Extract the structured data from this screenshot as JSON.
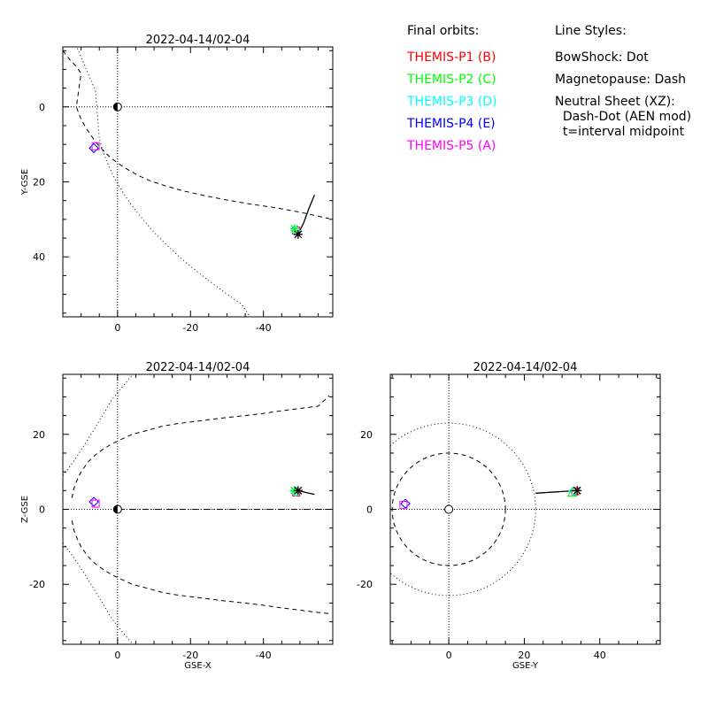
{
  "legend": {
    "orbits_title": "Final orbits:",
    "probes": [
      {
        "label": "THEMIS-P1 (B)",
        "color": "#ff0000"
      },
      {
        "label": "THEMIS-P2 (C)",
        "color": "#00ff00"
      },
      {
        "label": "THEMIS-P3 (D)",
        "color": "#00ffff"
      },
      {
        "label": "THEMIS-P4 (E)",
        "color": "#0000ff"
      },
      {
        "label": "THEMIS-P5 (A)",
        "color": "#ff00ff"
      }
    ],
    "styles_title": "Line Styles:",
    "styles": [
      "BowShock: Dot",
      "Magnetopause: Dash",
      "Neutral Sheet (XZ):",
      "  Dash-Dot (AEN mod)",
      "  t=interval midpoint"
    ]
  },
  "chart_data": [
    {
      "type": "line",
      "title": "2022-04-14/02-04",
      "xlabel": "",
      "ylabel": "Y-GSE",
      "xlim": [
        15,
        -59
      ],
      "ylim": [
        56,
        -16
      ],
      "xticks": [
        0,
        -20,
        -40
      ],
      "xtick_labels": [
        "0",
        "-20",
        "-40"
      ],
      "yticks": [
        0,
        20,
        40
      ],
      "ytick_labels": [
        "0",
        "20",
        "40"
      ],
      "series": [
        {
          "kind": "bowshock",
          "style": "dot",
          "color": "#000000",
          "x": [
            13,
            12,
            11,
            10,
            9,
            8,
            7,
            6,
            5,
            4,
            3,
            2,
            1,
            0,
            -2,
            -4,
            -6,
            -8,
            -10,
            -12,
            -14,
            -16,
            -18,
            -20,
            -22,
            -24,
            -26,
            -28,
            -30,
            -32,
            -34,
            -36
          ],
          "y": [
            -20.9,
            -18.1,
            -15.6,
            -13.3,
            -11,
            -8.7,
            -6.4,
            -4.1,
            8.6,
            11.8,
            14.4,
            16.6,
            18.7,
            20.5,
            23.6,
            26.4,
            28.9,
            31.2,
            33.4,
            35.4,
            37.3,
            39.1,
            40.9,
            42.5,
            44.1,
            45.6,
            47.1,
            48.5,
            49.9,
            51.3,
            52.6,
            55.5
          ]
        },
        {
          "kind": "magnetopause",
          "style": "dash",
          "color": "#000000",
          "x": [
            15,
            13,
            11.5,
            10,
            11.3,
            10.1,
            8.8,
            7.5,
            6.2,
            4.9,
            3.6,
            2.3,
            0.7,
            -1.1,
            -3.3,
            -5.9,
            -9.2,
            -13.3,
            -18,
            -23.5,
            -29.7,
            -36.3,
            -43.3,
            -50.5,
            -58
          ],
          "y": [
            -15,
            -12.5,
            -11,
            -9,
            0,
            3.1,
            5.4,
            7.3,
            9.1,
            10.6,
            11.9,
            13.2,
            14.4,
            15.7,
            17,
            18.4,
            19.8,
            21.1,
            22.4,
            23.6,
            24.8,
            25.9,
            26.9,
            28.2,
            29.8
          ]
        },
        {
          "kind": "trajectory",
          "style": "solid",
          "color": "#000000",
          "x": [
            -49.5,
            -51,
            -52.5,
            -54
          ],
          "y": [
            34,
            31,
            27,
            23.5
          ]
        }
      ],
      "markers": [
        {
          "probe": "P1",
          "symbol": "square",
          "color": "#ff0000",
          "x": -49,
          "y": 33
        },
        {
          "probe": "P2",
          "symbol": "asterisk",
          "color": "#00ff00",
          "x": -48.5,
          "y": 32.5
        },
        {
          "probe": "P3",
          "symbol": "diamond",
          "color": "#00ffff",
          "x": -48.8,
          "y": 33
        },
        {
          "probe": "P4",
          "symbol": "diamond",
          "color": "#0000ff",
          "x": 6.5,
          "y": 11
        },
        {
          "probe": "P5",
          "symbol": "square",
          "color": "#ff00ff",
          "x": 6,
          "y": 10.5
        },
        {
          "probe": "midpoint",
          "symbol": "asterisk",
          "color": "#000000",
          "x": -49.5,
          "y": 34
        }
      ],
      "earth": {
        "x": 0,
        "y": 0
      },
      "grid": "dotted zero lines"
    },
    {
      "type": "line",
      "title": "2022-04-14/02-04",
      "xlabel": "GSE-X",
      "ylabel": "Z-GSE",
      "xlim": [
        15,
        -59
      ],
      "ylim": [
        -36,
        36
      ],
      "xticks": [
        0,
        -20,
        -40
      ],
      "xtick_labels": [
        "0",
        "-20",
        "-40"
      ],
      "yticks": [
        -20,
        0,
        20
      ],
      "ytick_labels": [
        "-20",
        "0",
        "20"
      ],
      "series": [
        {
          "kind": "bowshock",
          "style": "dot",
          "color": "#000000",
          "x": [
            15,
            13,
            11,
            9,
            7,
            5,
            3,
            2,
            0,
            -2,
            -4,
            -6,
            -8,
            -10
          ],
          "y": [
            -9,
            -11.5,
            -14.3,
            -17.3,
            -20.4,
            -23.6,
            -26.9,
            -28.6,
            -31.1,
            -33.5,
            -35.8,
            -38,
            -40,
            -42
          ]
        },
        {
          "kind": "bowshock",
          "style": "dot",
          "color": "#000000",
          "x": [
            15,
            13,
            11,
            9,
            7,
            5,
            3,
            2,
            0,
            -2,
            -4,
            -6,
            -8,
            -10
          ],
          "y": [
            9,
            11.5,
            14.3,
            17.3,
            20.4,
            23.6,
            26.9,
            28.6,
            31.1,
            33.5,
            35.8,
            38,
            40,
            42
          ]
        },
        {
          "kind": "magnetopause",
          "style": "dash",
          "color": "#000000",
          "x": [
            12.5,
            12,
            11,
            10,
            8,
            6,
            4,
            2,
            0,
            -2,
            -4,
            -8,
            -12,
            -16,
            -20,
            -25,
            -30,
            -35,
            -40,
            -45,
            -50,
            -55,
            -58
          ],
          "y": [
            -3,
            -5.5,
            -8,
            -10,
            -12.7,
            -14.6,
            -16,
            -17.2,
            -18.2,
            -19.1,
            -20,
            -21,
            -22.1,
            -22.8,
            -23.3,
            -23.9,
            -24.5,
            -25,
            -25.6,
            -26.3,
            -26.9,
            -27.5,
            -27.8
          ]
        },
        {
          "kind": "magnetopause",
          "style": "dash",
          "color": "#000000",
          "x": [
            12.5,
            12,
            11,
            10,
            8,
            6,
            4,
            2,
            0,
            -2,
            -4,
            -8,
            -12,
            -16,
            -20,
            -25,
            -30,
            -35,
            -40,
            -45,
            -50,
            -55,
            -58
          ],
          "y": [
            3,
            5.5,
            8,
            10,
            12.7,
            14.6,
            16,
            17.2,
            18.2,
            19.1,
            20,
            21,
            22.1,
            22.8,
            23.3,
            23.9,
            24.5,
            25,
            25.6,
            26.3,
            26.9,
            27.5,
            30.3
          ]
        },
        {
          "kind": "neutral_sheet",
          "style": "dashdot",
          "color": "#000000",
          "x": [
            0,
            -58
          ],
          "y": [
            0,
            0
          ]
        },
        {
          "kind": "trajectory",
          "style": "solid",
          "color": "#000000",
          "x": [
            -49.5,
            -51.5,
            -54
          ],
          "y": [
            5,
            4.5,
            4
          ]
        }
      ],
      "markers": [
        {
          "probe": "P1",
          "symbol": "square",
          "color": "#ff0000",
          "x": -49,
          "y": 4.5
        },
        {
          "probe": "P2",
          "symbol": "asterisk",
          "color": "#00ff00",
          "x": -48.5,
          "y": 5
        },
        {
          "probe": "P3",
          "symbol": "diamond",
          "color": "#00ffff",
          "x": -48.8,
          "y": 4.7
        },
        {
          "probe": "P4",
          "symbol": "diamond",
          "color": "#0000ff",
          "x": 6.5,
          "y": 2
        },
        {
          "probe": "P5",
          "symbol": "square",
          "color": "#ff00ff",
          "x": 6,
          "y": 1.5
        },
        {
          "probe": "midpoint",
          "symbol": "asterisk",
          "color": "#000000",
          "x": -49.5,
          "y": 5
        }
      ],
      "earth": {
        "x": 0,
        "y": 0
      },
      "grid": "dotted zero lines"
    },
    {
      "type": "line",
      "title": "2022-04-14/02-04",
      "xlabel": "GSE-Y",
      "ylabel": "",
      "xlim": [
        -15.5,
        56
      ],
      "ylim": [
        -36,
        36
      ],
      "xticks": [
        0,
        20,
        40
      ],
      "xtick_labels": [
        "0",
        "20",
        "40"
      ],
      "yticks": [
        -20,
        0,
        20
      ],
      "ytick_labels": [
        "-20",
        "0",
        "20"
      ],
      "circles": [
        {
          "kind": "bowshock",
          "style": "dot",
          "r": 23
        },
        {
          "kind": "magnetopause",
          "style": "dash",
          "r": 15
        }
      ],
      "series": [
        {
          "kind": "trajectory",
          "style": "solid",
          "color": "#000000",
          "x": [
            23,
            34
          ],
          "y": [
            4.3,
            5
          ]
        }
      ],
      "markers": [
        {
          "probe": "P1",
          "symbol": "square",
          "color": "#ff0000",
          "x": 33.5,
          "y": 4.8
        },
        {
          "probe": "P2",
          "symbol": "triangle",
          "color": "#00ff00",
          "x": 32.7,
          "y": 4.5
        },
        {
          "probe": "P3",
          "symbol": "diamond",
          "color": "#00ffff",
          "x": 33,
          "y": 4.8
        },
        {
          "probe": "P4",
          "symbol": "diamond",
          "color": "#0000ff",
          "x": -11.5,
          "y": 1.5
        },
        {
          "probe": "P5",
          "symbol": "square",
          "color": "#ff00ff",
          "x": -12,
          "y": 1.2
        },
        {
          "probe": "midpoint",
          "symbol": "asterisk",
          "color": "#000000",
          "x": 34,
          "y": 5
        }
      ],
      "earth": {
        "x": 0,
        "y": 0
      },
      "grid": "dotted zero lines"
    }
  ]
}
